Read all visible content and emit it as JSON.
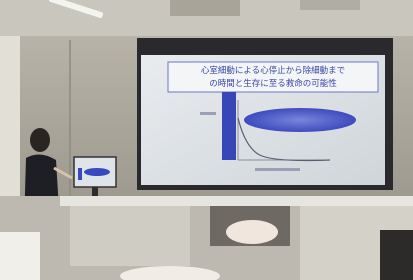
{
  "slide": {
    "title_lines": [
      "心室細動による心停止から除細動まで",
      "の時間と生存に至る救命の可能性"
    ]
  }
}
